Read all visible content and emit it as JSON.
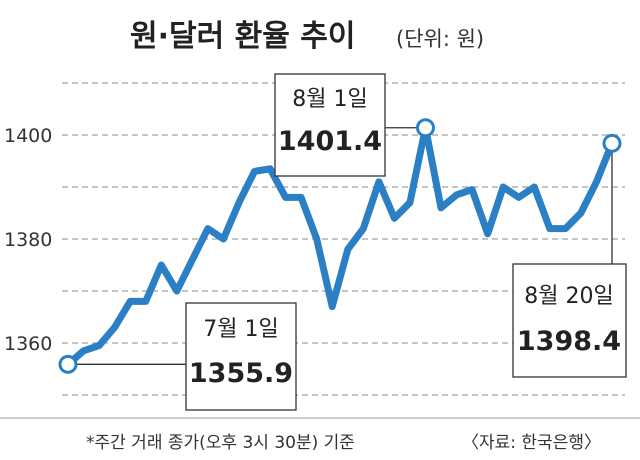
{
  "chart_data": {
    "type": "line",
    "title": "원·달러 환율 추이",
    "unit": "(단위: 원)",
    "y_ticks": [
      1360,
      1380,
      1400
    ],
    "ylim": [
      1350,
      1410
    ],
    "grid": true,
    "line_color": "#2b7fc4",
    "series": [
      {
        "values": [
          1355.9,
          1358.5,
          1359.5,
          1363,
          1368,
          1368,
          1375,
          1370,
          1376,
          1382,
          1380,
          1387,
          1393,
          1393.5,
          1388,
          1388,
          1380,
          1367,
          1378,
          1382,
          1391,
          1384,
          1387,
          1401.4,
          1386,
          1388.5,
          1389.5,
          1381,
          1390,
          1388,
          1390,
          1382,
          1382,
          1385,
          1391,
          1398.4
        ]
      }
    ],
    "annotations": [
      {
        "date": "7월 1일",
        "value": "1355.9",
        "point_index": 0
      },
      {
        "date": "8월 1일",
        "value": "1401.4",
        "point_index": 23
      },
      {
        "date": "8월 20일",
        "value": "1398.4",
        "point_index": 35
      }
    ]
  },
  "footer": {
    "note": "*주간 거래 종가(오후 3시 30분) 기준",
    "source": "〈자료: 한국은행〉"
  }
}
